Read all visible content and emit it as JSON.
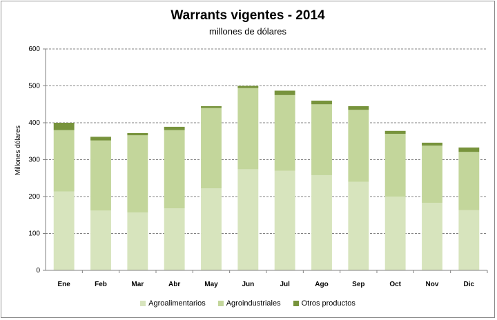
{
  "chart_data": {
    "type": "bar",
    "stacked": true,
    "title": "Warrants vigentes - 2014",
    "subtitle": "millones de dólares",
    "ylabel": "Millones dólares",
    "xlabel": "",
    "ylim": [
      0,
      600
    ],
    "yticks": [
      0,
      100,
      200,
      300,
      400,
      500,
      600
    ],
    "grid": true,
    "legend_position": "bottom",
    "categories": [
      "Ene",
      "Feb",
      "Mar",
      "Abr",
      "May",
      "Jun",
      "Jul",
      "Ago",
      "Sep",
      "Oct",
      "Nov",
      "Dic"
    ],
    "series": [
      {
        "name": "Agroalimentarios",
        "color": "#d7e4bd",
        "values": [
          214,
          162,
          157,
          168,
          222,
          274,
          270,
          258,
          240,
          200,
          183,
          163
        ]
      },
      {
        "name": "Agroindustriales",
        "color": "#c3d69b",
        "values": [
          166,
          190,
          209,
          212,
          218,
          220,
          205,
          192,
          195,
          170,
          155,
          158
        ]
      },
      {
        "name": "Otros productos",
        "color": "#77933c",
        "values": [
          20,
          10,
          6,
          9,
          5,
          6,
          12,
          10,
          10,
          8,
          8,
          12
        ]
      }
    ]
  }
}
